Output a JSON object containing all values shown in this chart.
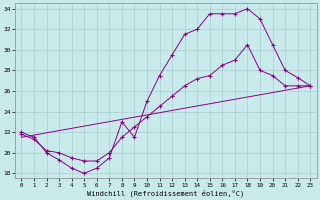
{
  "xlabel": "Windchill (Refroidissement éolien,°C)",
  "background_color": "#c8eaea",
  "grid_color": "#aacccc",
  "line_color": "#880088",
  "xlim": [
    -0.5,
    23.5
  ],
  "ylim": [
    17.5,
    34.5
  ],
  "xticks": [
    0,
    1,
    2,
    3,
    4,
    5,
    6,
    7,
    8,
    9,
    10,
    11,
    12,
    13,
    14,
    15,
    16,
    17,
    18,
    19,
    20,
    21,
    22,
    23
  ],
  "yticks": [
    18,
    20,
    22,
    24,
    26,
    28,
    30,
    32,
    34
  ],
  "line1_x": [
    0,
    1,
    2,
    3,
    4,
    5,
    6,
    7,
    8,
    9,
    10,
    11,
    12,
    13,
    14,
    15,
    16,
    17,
    18,
    19,
    20,
    21,
    22,
    23
  ],
  "line1_y": [
    22,
    21.5,
    20,
    19.3,
    18.5,
    18,
    18.5,
    19.5,
    23,
    21.5,
    25,
    27.5,
    29.5,
    31.5,
    32,
    33.5,
    33.5,
    33.5,
    34,
    33,
    30.5,
    28,
    27.3,
    26.5
  ],
  "line2_x": [
    0,
    1,
    2,
    3,
    4,
    5,
    6,
    7,
    8,
    9,
    10,
    11,
    12,
    13,
    14,
    15,
    16,
    17,
    18,
    19,
    20,
    21,
    22,
    23
  ],
  "line2_y": [
    21.8,
    21.3,
    20.2,
    20,
    19.5,
    19.2,
    19.2,
    20,
    21.5,
    22.5,
    23.5,
    24.5,
    25.5,
    26.5,
    27.2,
    27.5,
    28.5,
    29.0,
    30.5,
    28,
    27.5,
    26.5,
    26.5,
    26.5
  ],
  "line3_x": [
    0,
    23
  ],
  "line3_y": [
    21.5,
    26.5
  ]
}
